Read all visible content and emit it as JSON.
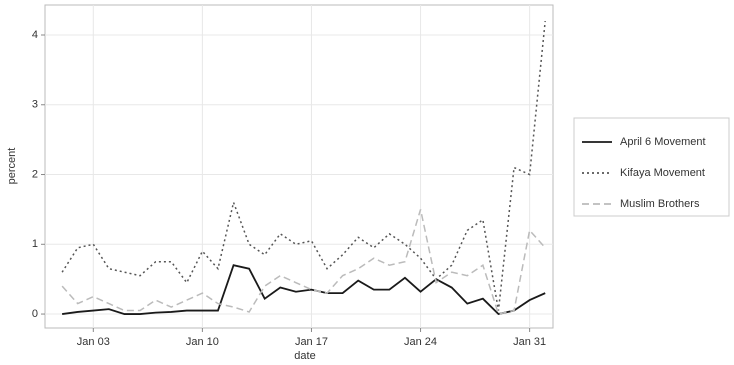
{
  "chart_data": {
    "type": "line",
    "xlabel": "date",
    "ylabel": "percent",
    "x": [
      1,
      2,
      3,
      4,
      5,
      6,
      7,
      8,
      9,
      10,
      11,
      12,
      13,
      14,
      15,
      16,
      17,
      18,
      19,
      20,
      21,
      22,
      23,
      24,
      25,
      26,
      27,
      28,
      29,
      30,
      31,
      32
    ],
    "xlim": [
      -0.1,
      32.5
    ],
    "xticks": [
      {
        "value": 3,
        "label": "Jan 03"
      },
      {
        "value": 10,
        "label": "Jan 10"
      },
      {
        "value": 17,
        "label": "Jan 17"
      },
      {
        "value": 24,
        "label": "Jan 24"
      },
      {
        "value": 31,
        "label": "Jan 31"
      }
    ],
    "ylim": [
      -0.2,
      4.43
    ],
    "yticks": [
      0,
      1,
      2,
      3,
      4
    ],
    "grid": true,
    "legend": "right",
    "series": [
      {
        "name": "April 6 Movement",
        "color": "#1a1a1a",
        "linestyle": "solid",
        "values": [
          0.0,
          0.03,
          0.05,
          0.07,
          0.0,
          0.0,
          0.02,
          0.03,
          0.05,
          0.05,
          0.05,
          0.7,
          0.65,
          0.22,
          0.38,
          0.32,
          0.35,
          0.3,
          0.3,
          0.48,
          0.35,
          0.35,
          0.52,
          0.32,
          0.5,
          0.38,
          0.15,
          0.22,
          0.0,
          0.05,
          0.2,
          0.3
        ]
      },
      {
        "name": "Kifaya Movement",
        "color": "#555555",
        "linestyle": "dotted",
        "values": [
          0.6,
          0.95,
          1.0,
          0.65,
          0.6,
          0.55,
          0.75,
          0.75,
          0.45,
          0.9,
          0.65,
          1.6,
          1.0,
          0.85,
          1.15,
          1.0,
          1.05,
          0.65,
          0.85,
          1.1,
          0.95,
          1.15,
          1.0,
          0.8,
          0.5,
          0.7,
          1.2,
          1.35,
          0.05,
          2.1,
          2.0,
          4.2
        ]
      },
      {
        "name": "Muslim Brothers",
        "color": "#bbbbbb",
        "linestyle": "dashed",
        "values": [
          0.4,
          0.15,
          0.25,
          0.15,
          0.05,
          0.05,
          0.2,
          0.1,
          0.2,
          0.3,
          0.15,
          0.1,
          0.03,
          0.4,
          0.55,
          0.45,
          0.35,
          0.3,
          0.55,
          0.65,
          0.8,
          0.7,
          0.75,
          1.5,
          0.45,
          0.6,
          0.55,
          0.7,
          0.0,
          0.05,
          1.2,
          0.95
        ]
      }
    ]
  }
}
